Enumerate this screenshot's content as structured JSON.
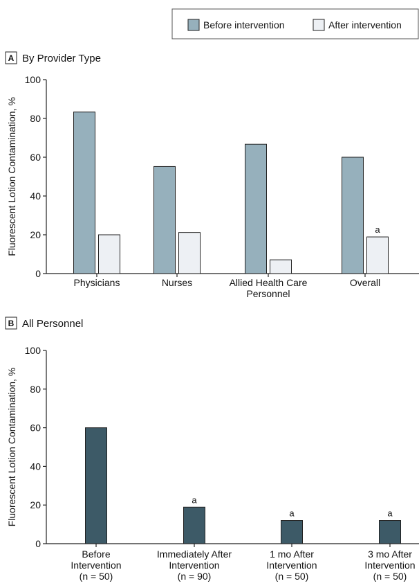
{
  "legend": {
    "items": [
      {
        "label": "Before intervention",
        "color": "#96b0bc"
      },
      {
        "label": "After intervention",
        "color": "#edf0f4"
      }
    ]
  },
  "chart_data": [
    {
      "panel_letter": "A",
      "title": "By Provider Type",
      "type": "bar",
      "ylabel": "Fluorescent Lotion Contamination, %",
      "ylim": [
        0,
        100
      ],
      "yticks": [
        "0",
        "20",
        "40",
        "60",
        "80",
        "100"
      ],
      "categories": [
        [
          "Physicians"
        ],
        [
          "Nurses"
        ],
        [
          "Allied Health Care",
          "Personnel"
        ],
        [
          "Overall"
        ]
      ],
      "series": [
        {
          "name": "Before intervention",
          "color": "#96b0bc",
          "values": [
            83.3,
            55.2,
            66.7,
            60
          ]
        },
        {
          "name": "After intervention",
          "color": "#edf0f4",
          "values": [
            20,
            21.2,
            7.1,
            18.9
          ]
        }
      ],
      "annotations": [
        {
          "series": 1,
          "category": 3,
          "text": "a"
        }
      ]
    },
    {
      "panel_letter": "B",
      "title": "All Personnel",
      "type": "bar",
      "ylabel": "Fluorescent Lotion Contamination, %",
      "ylim": [
        0,
        100
      ],
      "yticks": [
        "0",
        "20",
        "40",
        "60",
        "80",
        "100"
      ],
      "categories": [
        [
          "Before",
          "Intervention",
          "(n = 50)"
        ],
        [
          "Immediately After",
          "Intervention",
          "(n = 90)"
        ],
        [
          "1 mo After",
          "Intervention",
          "(n = 50)"
        ],
        [
          "3 mo After",
          "Intervention",
          "(n = 50)"
        ]
      ],
      "series": [
        {
          "color": "#3d5a67",
          "values": [
            60,
            18.9,
            12,
            12
          ]
        }
      ],
      "annotations": [
        {
          "series": 0,
          "category": 1,
          "text": "a"
        },
        {
          "series": 0,
          "category": 2,
          "text": "a"
        },
        {
          "series": 0,
          "category": 3,
          "text": "a"
        }
      ]
    }
  ]
}
